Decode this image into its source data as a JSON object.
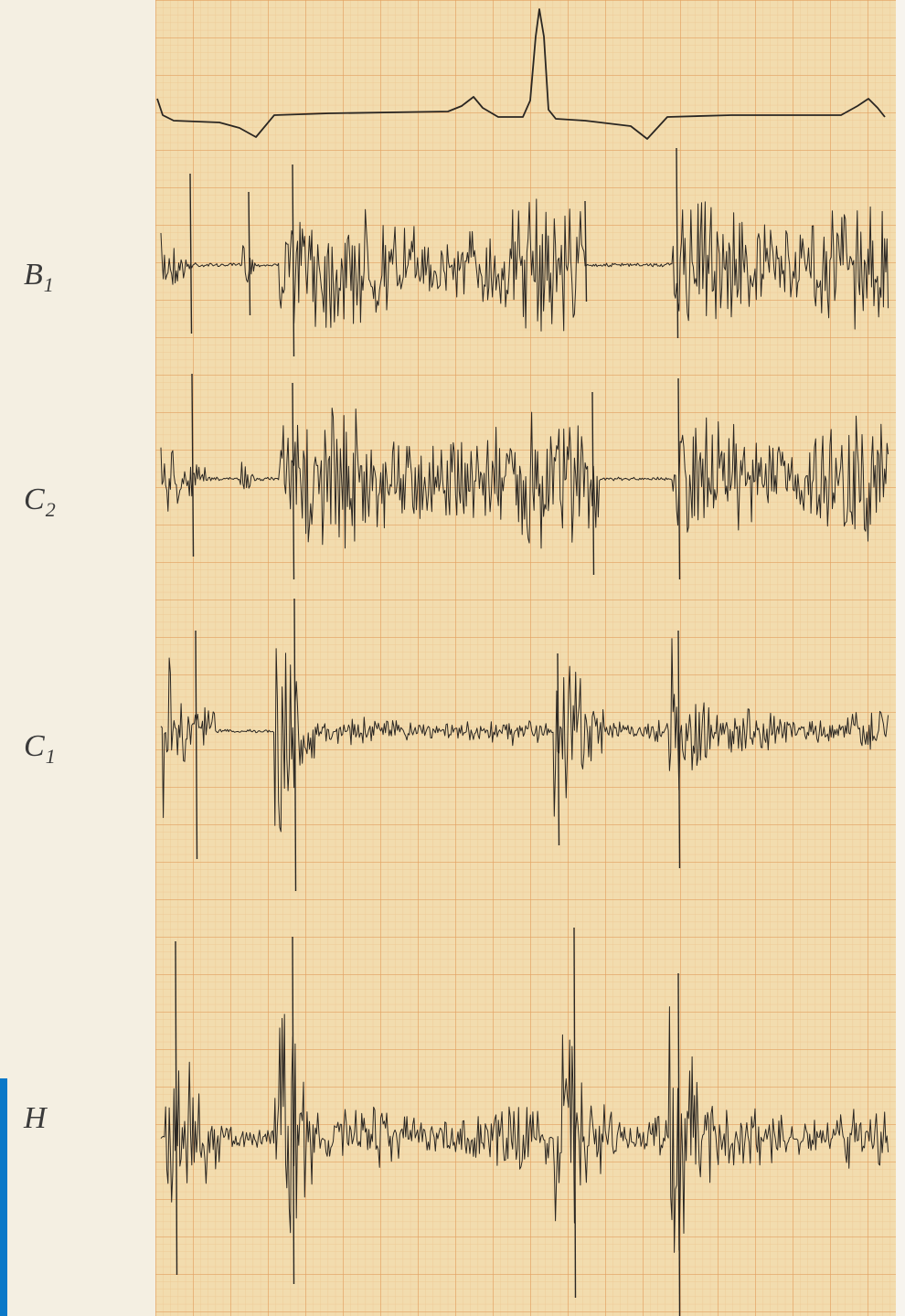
{
  "colors": {
    "page": "#f4efe2",
    "graph_paper": "#f2dcae",
    "grid_fine": "#eec48e",
    "grid_major": "#e8a86a",
    "trace": "#2a2622",
    "accent_edge": "#0a78c8"
  },
  "leads": [
    {
      "label": "B",
      "sub": "1"
    },
    {
      "label": "C",
      "sub": "2"
    },
    {
      "label": "C",
      "sub": "1"
    },
    {
      "label": "H",
      "sub": ""
    }
  ]
}
